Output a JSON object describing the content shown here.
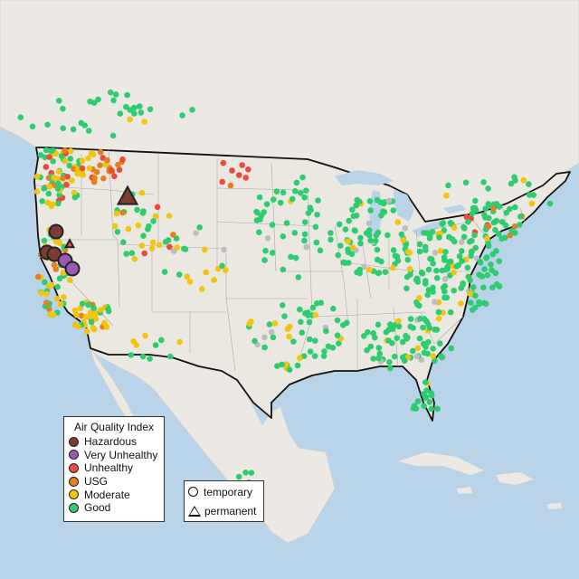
{
  "legend": {
    "title": "Air Quality Index",
    "categories": [
      {
        "label": "Hazardous",
        "color": "#7e3b2f"
      },
      {
        "label": "Very Unhealthy",
        "color": "#9b59b6"
      },
      {
        "label": "Unhealthy",
        "color": "#e74c3c"
      },
      {
        "label": "USG",
        "color": "#e67e22"
      },
      {
        "label": "Moderate",
        "color": "#f1c40f"
      },
      {
        "label": "Good",
        "color": "#2ecc71"
      }
    ],
    "no_data_color": "#bdbdbd"
  },
  "monitor_type_legend": {
    "temporary": "temporary",
    "permanent": "permanent"
  }
}
